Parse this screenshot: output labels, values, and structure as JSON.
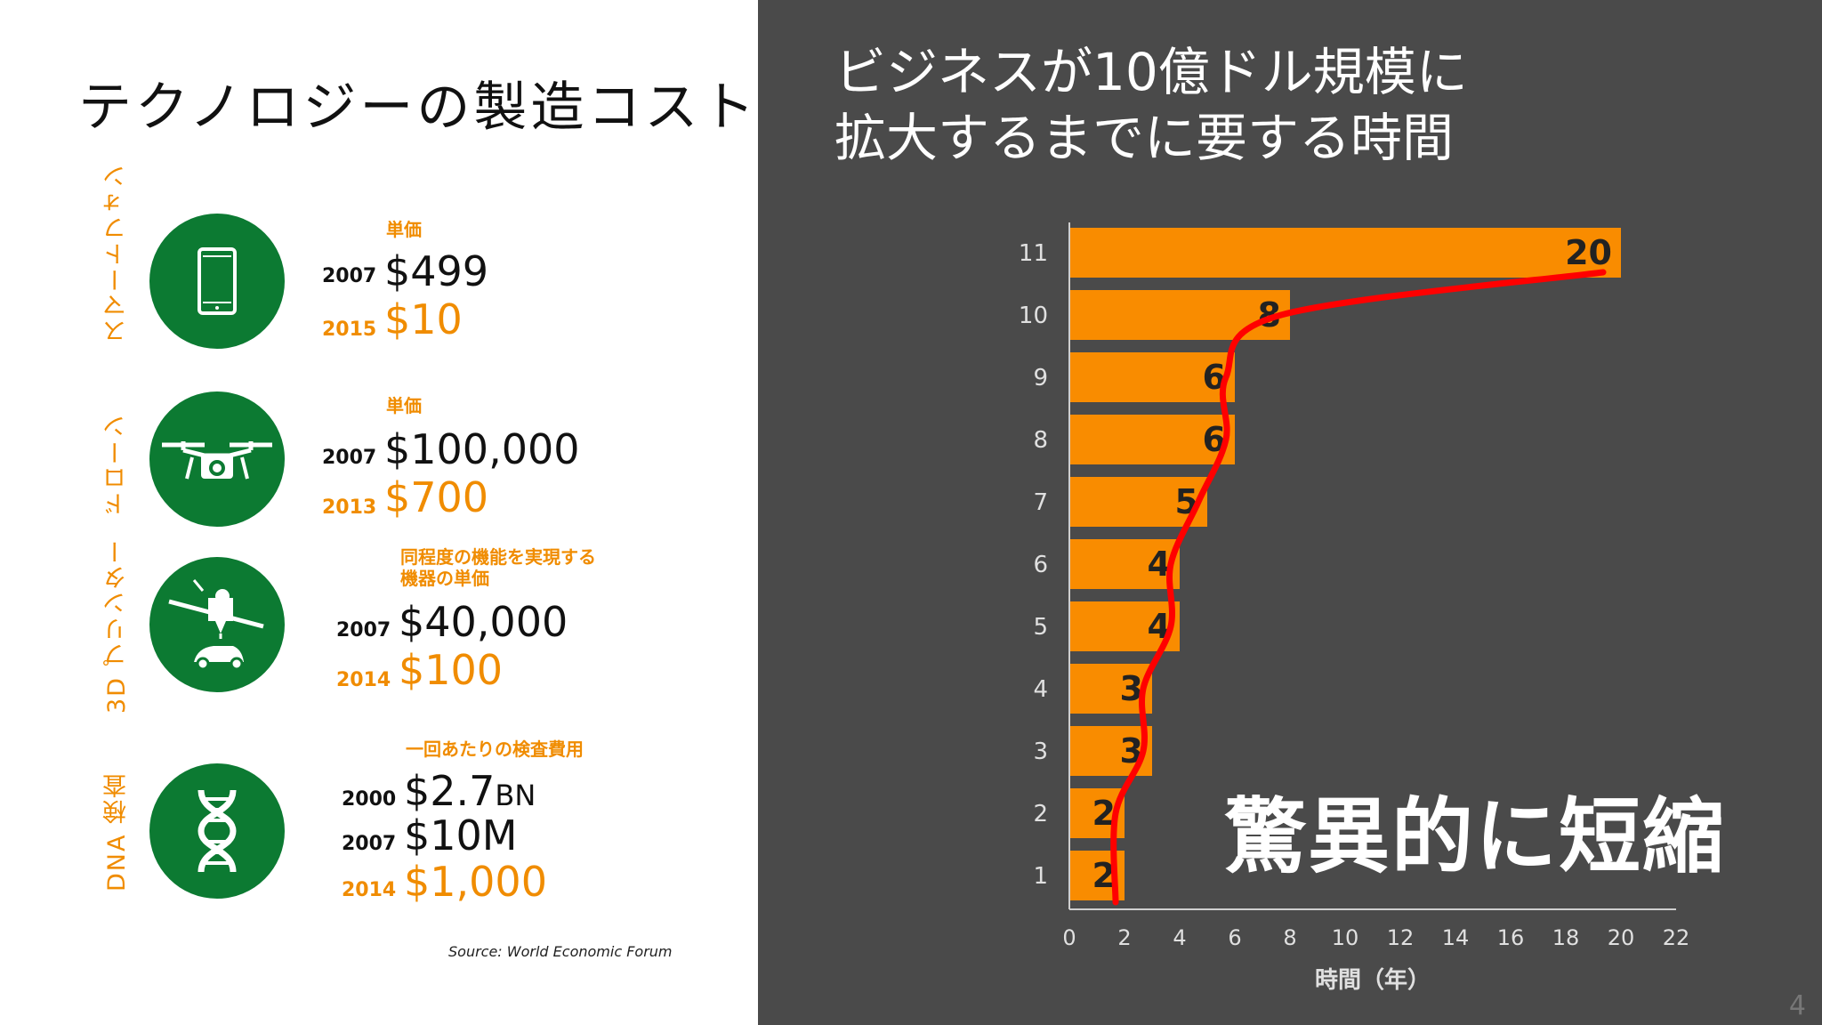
{
  "left": {
    "title": "テクノロジーの製造コスト",
    "source": "Source: World Economic Forum",
    "items": [
      {
        "category": "スマートフォン",
        "icon": "smartphone-icon",
        "note": "単価",
        "rows": [
          {
            "year": "2007",
            "price": "$499",
            "unit": ""
          },
          {
            "year": "2015",
            "price": "$10",
            "unit": ""
          }
        ]
      },
      {
        "category": "ドローン",
        "icon": "drone-icon",
        "note": "単価",
        "rows": [
          {
            "year": "2007",
            "price": "$100,000",
            "unit": ""
          },
          {
            "year": "2013",
            "price": "$700",
            "unit": ""
          }
        ]
      },
      {
        "category": "3D プリンター",
        "icon": "3d-printer-icon",
        "note": "同程度の機能を実現する機器の単価",
        "rows": [
          {
            "year": "2007",
            "price": "$40,000",
            "unit": ""
          },
          {
            "year": "2014",
            "price": "$100",
            "unit": ""
          }
        ]
      },
      {
        "category": "DNA 検査",
        "icon": "dna-icon",
        "note": "一回あたりの検査費用",
        "rows": [
          {
            "year": "2000",
            "price": "$2.7",
            "unit": "BN"
          },
          {
            "year": "2007",
            "price": "$10M",
            "unit": ""
          },
          {
            "year": "2014",
            "price": "$1,000",
            "unit": ""
          }
        ]
      }
    ]
  },
  "right": {
    "title_line1": "ビジネスが10億ドル規模に",
    "title_line2": "拡大するまでに要する時間",
    "annotation": "驚異的に短縮",
    "page_number": "4"
  },
  "colors": {
    "bar": "#f98c00",
    "trend_line": "#ff0000",
    "panel": "#4a4a4a",
    "green": "#0c7a32",
    "orange_text": "#f08c00"
  },
  "chart_data": {
    "type": "bar",
    "orientation": "horizontal",
    "categories": [
      "1",
      "2",
      "3",
      "4",
      "5",
      "6",
      "7",
      "8",
      "9",
      "10",
      "11"
    ],
    "values": [
      2,
      2,
      3,
      3,
      4,
      4,
      5,
      6,
      6,
      8,
      20
    ],
    "data_labels": [
      "2",
      "2",
      "3",
      "3",
      "4",
      "4",
      "5",
      "6",
      "6",
      "8",
      "20"
    ],
    "xlabel": "時間（年）",
    "ylabel": "",
    "xlim": [
      0,
      22
    ],
    "xticks": [
      0,
      2,
      4,
      6,
      8,
      10,
      12,
      14,
      16,
      18,
      20,
      22
    ],
    "grid": false,
    "trend_line": true
  }
}
